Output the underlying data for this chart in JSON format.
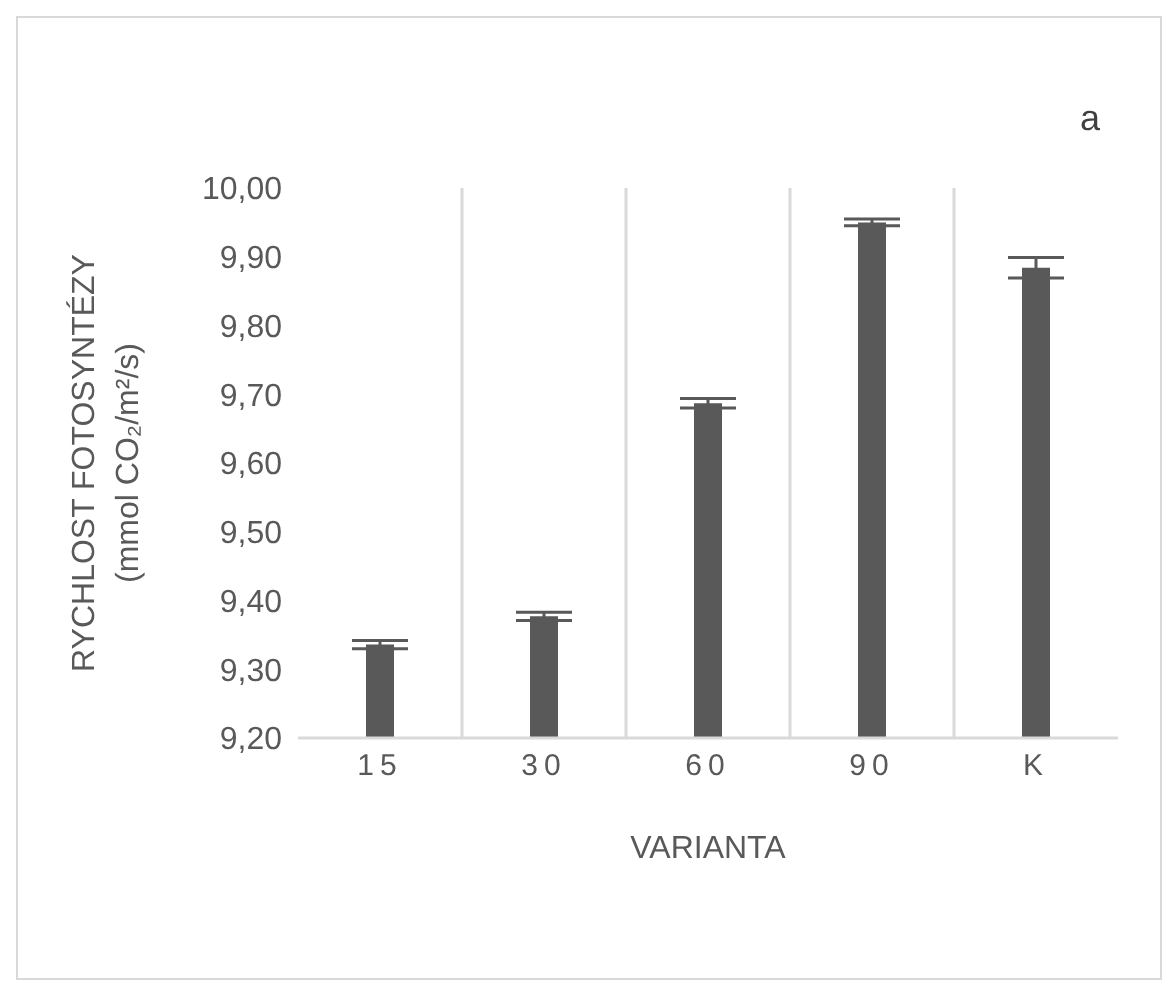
{
  "chart_data": {
    "type": "bar",
    "categories": [
      "15",
      "30",
      "60",
      "90",
      "K"
    ],
    "values": [
      9.336,
      9.377,
      9.687,
      9.95,
      9.884
    ],
    "errors": [
      0.006,
      0.006,
      0.007,
      0.005,
      0.015
    ],
    "color": "#595959",
    "xlabel": "VARIANTA",
    "ylabel": "RYCHLOST FOTOSYNTÉZY\n(mmol CO₂/m²/s)",
    "annotations": [
      "a"
    ],
    "ylim": [
      9.2,
      10.0
    ],
    "yticks": [
      {
        "value": 9.2,
        "label": "9,20"
      },
      {
        "value": 9.3,
        "label": "9,30"
      },
      {
        "value": 9.4,
        "label": "9,40"
      },
      {
        "value": 9.5,
        "label": "9,50"
      },
      {
        "value": 9.6,
        "label": "9,60"
      },
      {
        "value": 9.7,
        "label": "9,70"
      },
      {
        "value": 9.8,
        "label": "9,80"
      },
      {
        "value": 9.9,
        "label": "9,90"
      },
      {
        "value": 10.0,
        "label": "10,00"
      }
    ],
    "grid": "x"
  }
}
